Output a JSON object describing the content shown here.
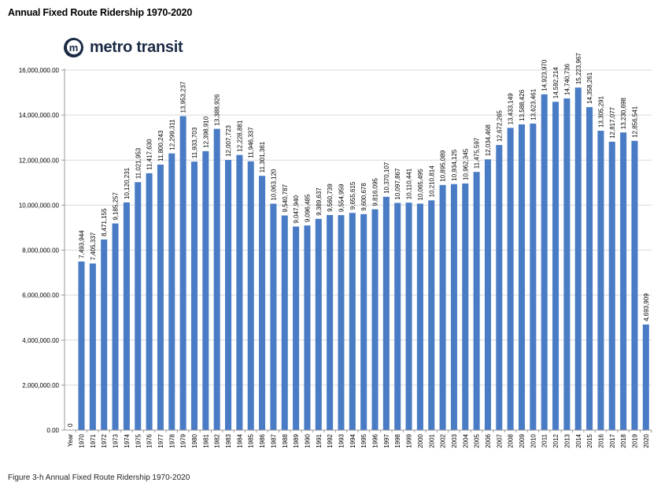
{
  "title": "Annual Fixed Route Ridership 1970-2020",
  "logo": {
    "mark": "m",
    "text": "metro transit",
    "icon": "metro-transit-logo-icon"
  },
  "caption": "Figure 3-h Annual Fixed Route Ridership 1970-2020",
  "colors": {
    "bar": "#4a7cc5",
    "axis": "#9a9a9a",
    "grid": "#d9d9d9"
  },
  "chart_data": {
    "type": "bar",
    "xlabel": "",
    "ylabel": "",
    "ylim": [
      0,
      16000000
    ],
    "yticks": [
      0,
      2000000,
      4000000,
      6000000,
      8000000,
      10000000,
      12000000,
      14000000,
      16000000
    ],
    "ytick_labels": [
      "0.00",
      "2,000,000.00",
      "4,000,000.00",
      "6,000,000.00",
      "8,000,000.00",
      "10,000,000.00",
      "12,000,000.00",
      "14,000,000.00",
      "16,000,000.00"
    ],
    "grid": "horizontal",
    "categories": [
      "Year",
      "1970",
      "1971",
      "1972",
      "1973",
      "1974",
      "1975",
      "1976",
      "1977",
      "1978",
      "1979",
      "1980",
      "1981",
      "1982",
      "1983",
      "1984",
      "1985",
      "1986",
      "1987",
      "1988",
      "1989",
      "1990",
      "1991",
      "1992",
      "1993",
      "1994",
      "1995",
      "1996",
      "1997",
      "1998",
      "1999",
      "2000",
      "2001",
      "2002",
      "2003",
      "2004",
      "2005",
      "2006",
      "2007",
      "2008",
      "2009",
      "2010",
      "2011",
      "2012",
      "2013",
      "2014",
      "2015",
      "2016",
      "2017",
      "2018",
      "2019",
      "2020"
    ],
    "values": [
      0,
      7493944,
      7405337,
      8471155,
      9185257,
      10120231,
      11021953,
      11417630,
      11800243,
      12299311,
      13953237,
      11933703,
      12398910,
      13388926,
      12007723,
      12228881,
      11946337,
      11301361,
      10063120,
      9540787,
      9047940,
      9096485,
      9389637,
      9560739,
      9554959,
      9655615,
      9600678,
      9816095,
      10370107,
      10097867,
      10110441,
      10065495,
      10210814,
      10895089,
      10934125,
      10962345,
      11475597,
      12034468,
      12672265,
      13433149,
      13588426,
      13623461,
      14923970,
      14592214,
      14740736,
      15223967,
      14358261,
      13305291,
      12817077,
      13230698,
      12856541,
      4693909
    ],
    "labels": [
      "0",
      "7,493,944",
      "7,405,337",
      "8,471,155",
      "9,185,257",
      "10,120,231",
      "11,021,953",
      "11,417,630",
      "11,800,243",
      "12,299,311",
      "13,953,237",
      "11,933,703",
      "12,398,910",
      "13,388,926",
      "12,007,723",
      "12,228,881",
      "11,946,337",
      "11,301,361",
      "10,063,120",
      "9,540,787",
      "9,047,940",
      "9,096,485",
      "9,389,637",
      "9,560,739",
      "9,554,959",
      "9,655,615",
      "9,600,678",
      "9,816,095",
      "10,370,107",
      "10,097,867",
      "10,110,441",
      "10,065,495",
      "10,210,814",
      "10,895,089",
      "10,934,125",
      "10,962,345",
      "11,475,597",
      "12,034,468",
      "12,672,265",
      "13,433,149",
      "13,588,426",
      "13,623,461",
      "14,923,970",
      "14,592,214",
      "14,740,736",
      "15,223,967",
      "14,358,261",
      "13,305,291",
      "12,817,077",
      "13,230,698",
      "12,856,541",
      "4,693,909"
    ]
  }
}
